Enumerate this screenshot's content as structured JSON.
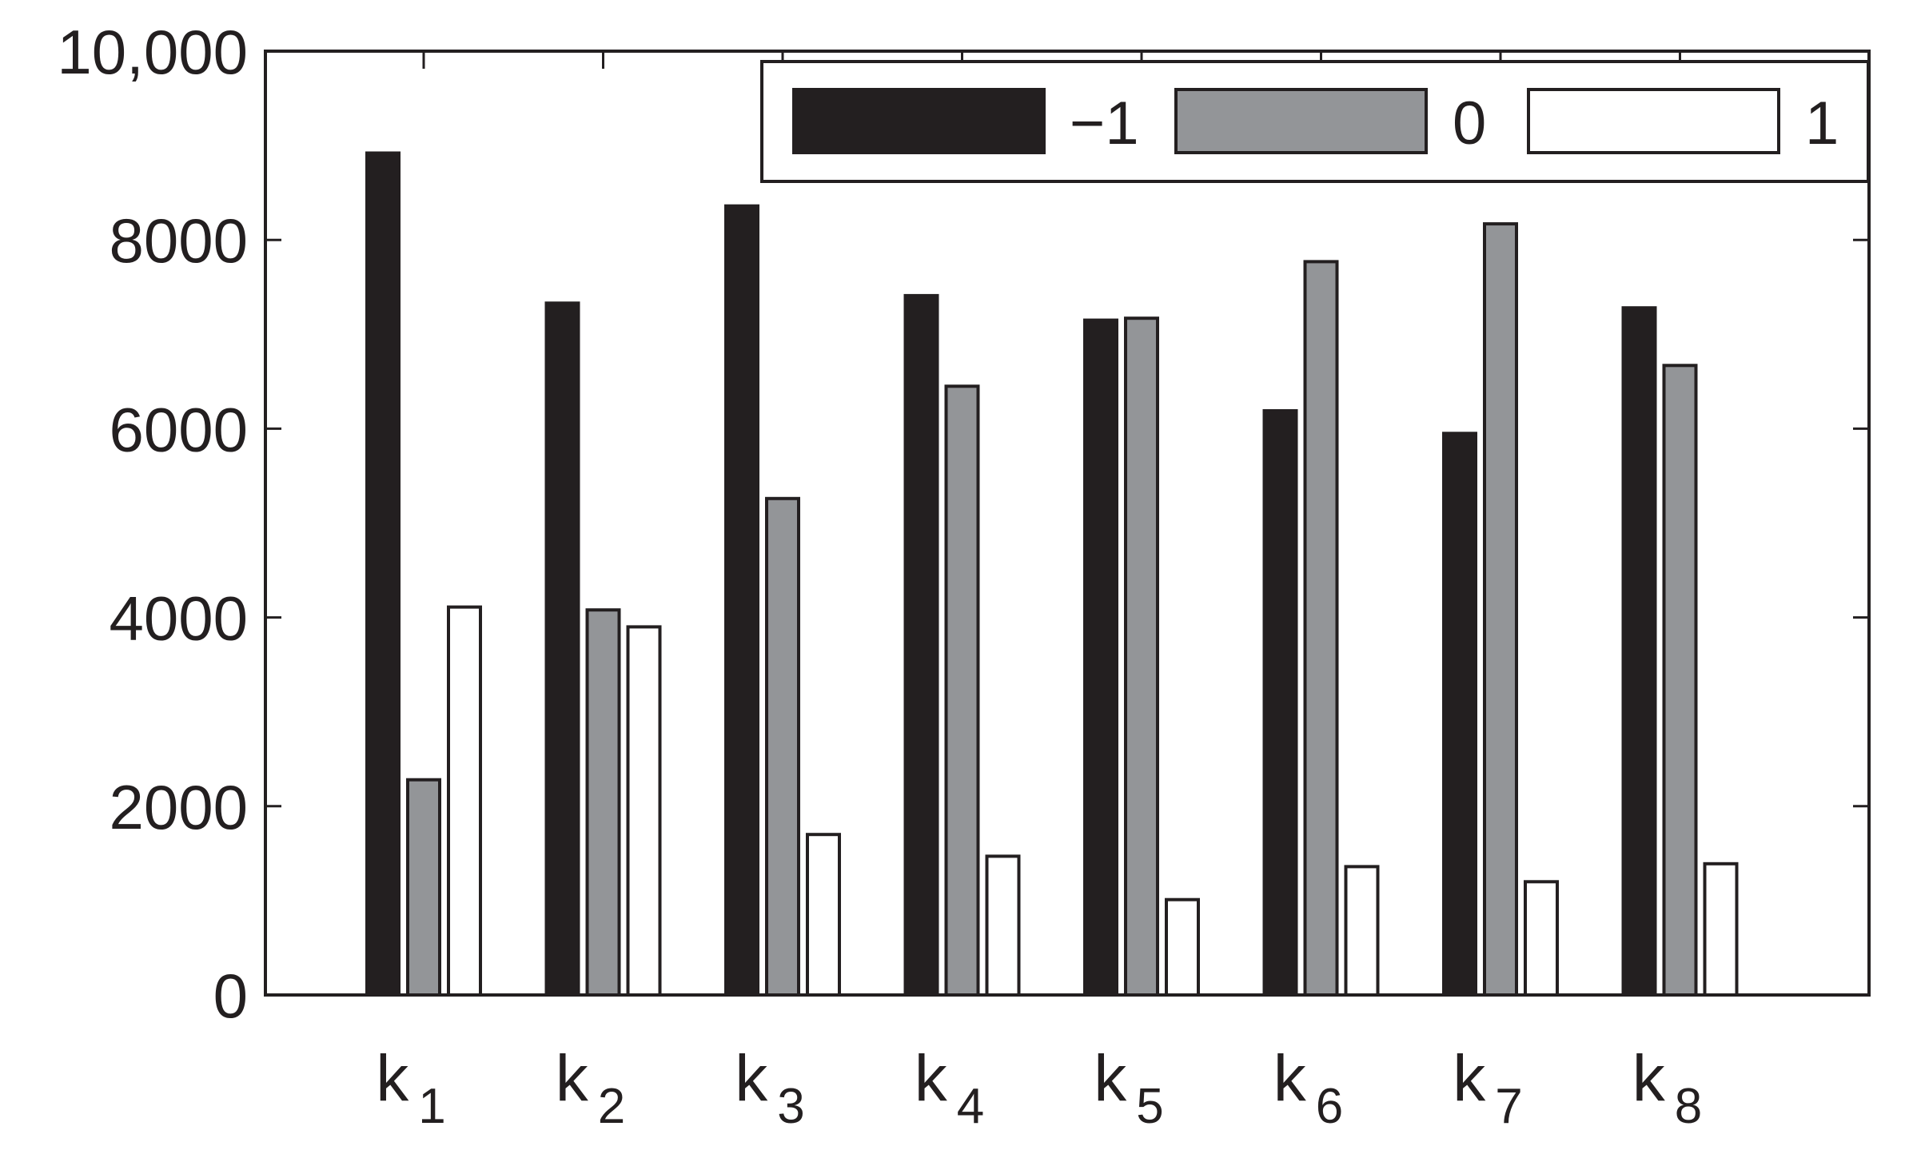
{
  "chart_data": {
    "type": "bar",
    "title": "",
    "xlabel": "",
    "ylabel": "",
    "ylim": [
      0,
      10000
    ],
    "yticks": [
      {
        "value": 0,
        "label": "0"
      },
      {
        "value": 2000,
        "label": "2000"
      },
      {
        "value": 4000,
        "label": "4000"
      },
      {
        "value": 6000,
        "label": "6000"
      },
      {
        "value": 8000,
        "label": "8000"
      },
      {
        "value": 10000,
        "label": "10,000"
      }
    ],
    "categories": [
      {
        "base": "k",
        "sub": "1"
      },
      {
        "base": "k",
        "sub": "2"
      },
      {
        "base": "k",
        "sub": "3"
      },
      {
        "base": "k",
        "sub": "4"
      },
      {
        "base": "k",
        "sub": "5"
      },
      {
        "base": "k",
        "sub": "6"
      },
      {
        "base": "k",
        "sub": "7"
      },
      {
        "base": "k",
        "sub": "8"
      }
    ],
    "series": [
      {
        "name": "−1",
        "color": "#231f20",
        "values": [
          8920,
          7330,
          8360,
          7410,
          7150,
          6190,
          5950,
          7280
        ]
      },
      {
        "name": "0",
        "color": "#939598",
        "values": [
          2280,
          4080,
          5260,
          6450,
          7170,
          7770,
          8170,
          6670
        ]
      },
      {
        "name": "1",
        "color": "#ffffff",
        "values": [
          4110,
          3900,
          1700,
          1470,
          1010,
          1360,
          1200,
          1390
        ]
      }
    ],
    "grid": false,
    "legend_position": "top-right",
    "axis_color": "#231f20"
  }
}
